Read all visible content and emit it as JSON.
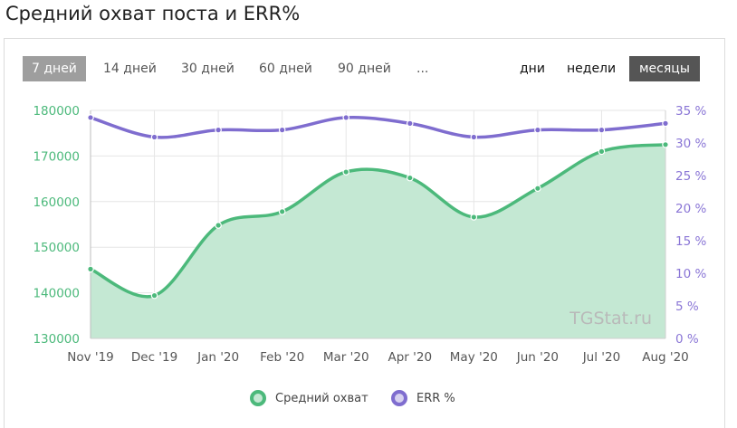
{
  "title": "Средний охват поста и ERR%",
  "periods": [
    {
      "label": "7 дней",
      "active": true
    },
    {
      "label": "14 дней",
      "active": false
    },
    {
      "label": "30 дней",
      "active": false
    },
    {
      "label": "60 дней",
      "active": false
    },
    {
      "label": "90 дней",
      "active": false
    },
    {
      "label": "...",
      "active": false
    }
  ],
  "granularity": [
    {
      "label": "дни",
      "active": false
    },
    {
      "label": "недели",
      "active": false
    },
    {
      "label": "месяцы",
      "active": true
    }
  ],
  "watermark": "TGStat.ru",
  "colors": {
    "reach": "#4cb97b",
    "reach_fill": "#c4e8d3",
    "err": "#7f6dcf",
    "err_fill": "#d7d1f0",
    "left_axis": "#4cb97b",
    "right_axis": "#8a76d6",
    "grid": "#e6e6e6",
    "active_period": "#9e9e9e",
    "active_granularity": "#555555"
  },
  "chart_data": {
    "type": "area",
    "categories": [
      "Nov '19",
      "Dec '19",
      "Jan '20",
      "Feb '20",
      "Mar '20",
      "Apr '20",
      "May '20",
      "Jun '20",
      "Jul '20",
      "Aug '20"
    ],
    "series": [
      {
        "name": "Средний охват",
        "axis": "left",
        "type": "area",
        "values": [
          145200,
          139400,
          154800,
          157800,
          166500,
          165200,
          156600,
          162900,
          171000,
          172500
        ]
      },
      {
        "name": "ERR %",
        "axis": "right",
        "type": "line",
        "values": [
          33.9,
          30.9,
          32.0,
          32.0,
          33.9,
          33.0,
          30.9,
          32.0,
          32.0,
          33.0
        ]
      }
    ],
    "y_left": {
      "ticks": [
        "130000",
        "140000",
        "150000",
        "160000",
        "170000",
        "180000"
      ],
      "lim": [
        130000,
        180000
      ]
    },
    "y_right": {
      "ticks": [
        "0 %",
        "5 %",
        "10 %",
        "15 %",
        "20 %",
        "25 %",
        "30 %",
        "35 %"
      ],
      "lim": [
        0,
        35
      ]
    },
    "grid": true,
    "legend_position": "bottom-center"
  }
}
